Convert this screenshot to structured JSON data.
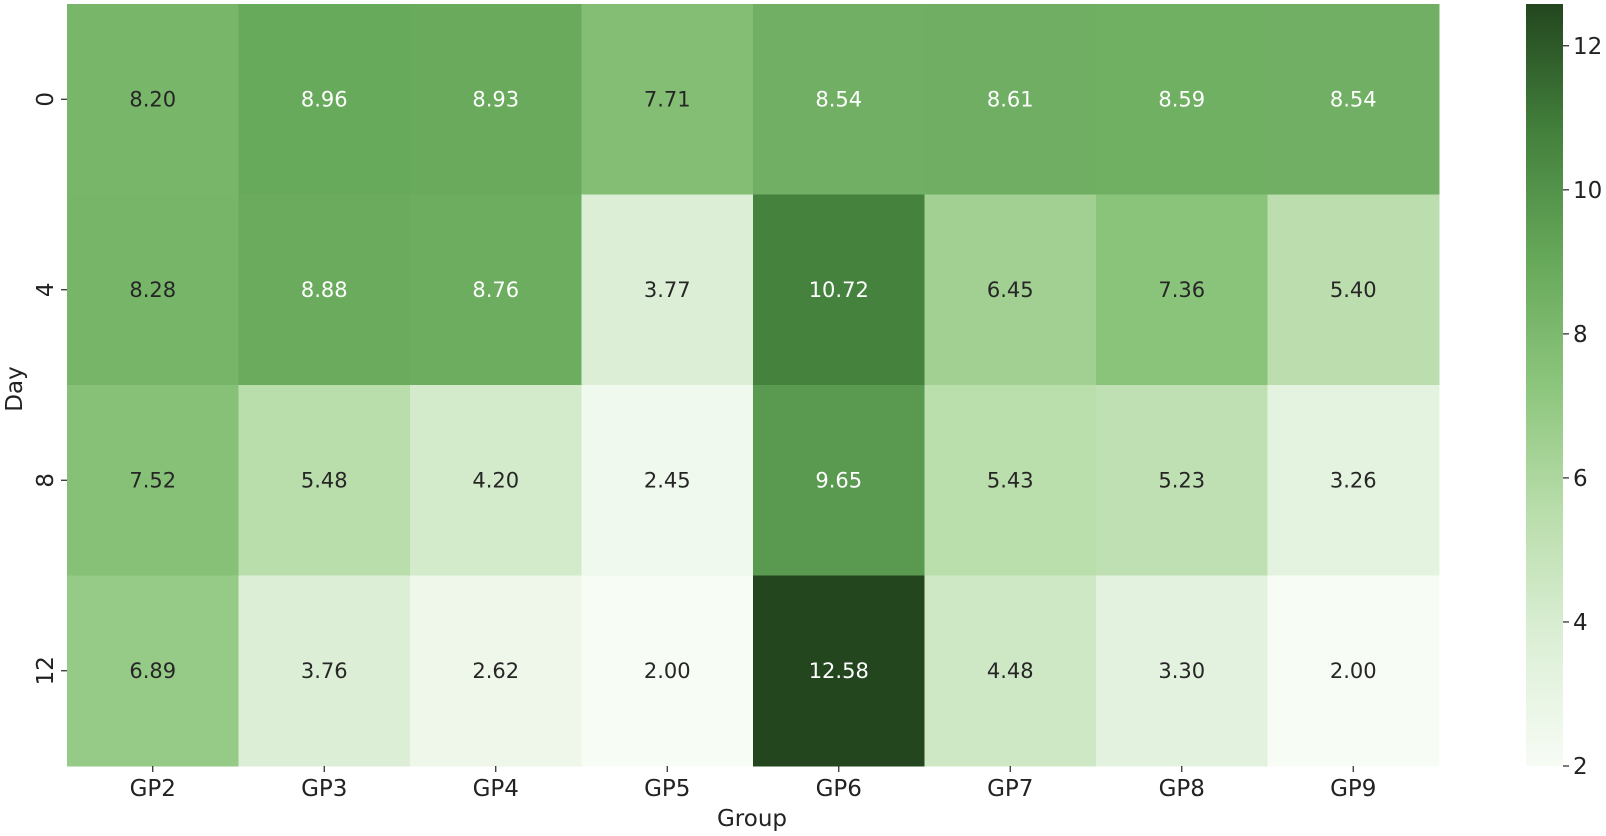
{
  "chart_data": {
    "type": "heatmap",
    "title": "",
    "xlabel": "Group",
    "ylabel": "Day",
    "x_categories": [
      "GP2",
      "GP3",
      "GP4",
      "GP5",
      "GP6",
      "GP7",
      "GP8",
      "GP9"
    ],
    "y_categories": [
      "0",
      "4",
      "8",
      "12"
    ],
    "values": [
      [
        8.2,
        8.96,
        8.93,
        7.71,
        8.54,
        8.61,
        8.59,
        8.54
      ],
      [
        8.28,
        8.88,
        8.76,
        3.77,
        10.72,
        6.45,
        7.36,
        5.4
      ],
      [
        7.52,
        5.48,
        4.2,
        2.45,
        9.65,
        5.43,
        5.23,
        3.26
      ],
      [
        6.89,
        3.76,
        2.62,
        2.0,
        12.58,
        4.48,
        3.3,
        2.0
      ]
    ],
    "value_format_decimals": 2,
    "colorbar": {
      "min": 2.0,
      "max": 12.58,
      "ticks": [
        2,
        4,
        6,
        8,
        10,
        12
      ],
      "colors": [
        "#f7fcf5",
        "#e5f5e0",
        "#c7e9c0",
        "#a1d99b",
        "#74c476",
        "#41ab5d",
        "#238b45",
        "#006d2c",
        "#00441b"
      ],
      "placement": "right"
    },
    "palette": [
      "#f7fcf5",
      "#dcefd6",
      "#b9ddab",
      "#8cc57c",
      "#66a85a",
      "#43803c",
      "#23461f"
    ],
    "text_colors": {
      "light": "#ffffff",
      "dark": "#262626"
    }
  }
}
